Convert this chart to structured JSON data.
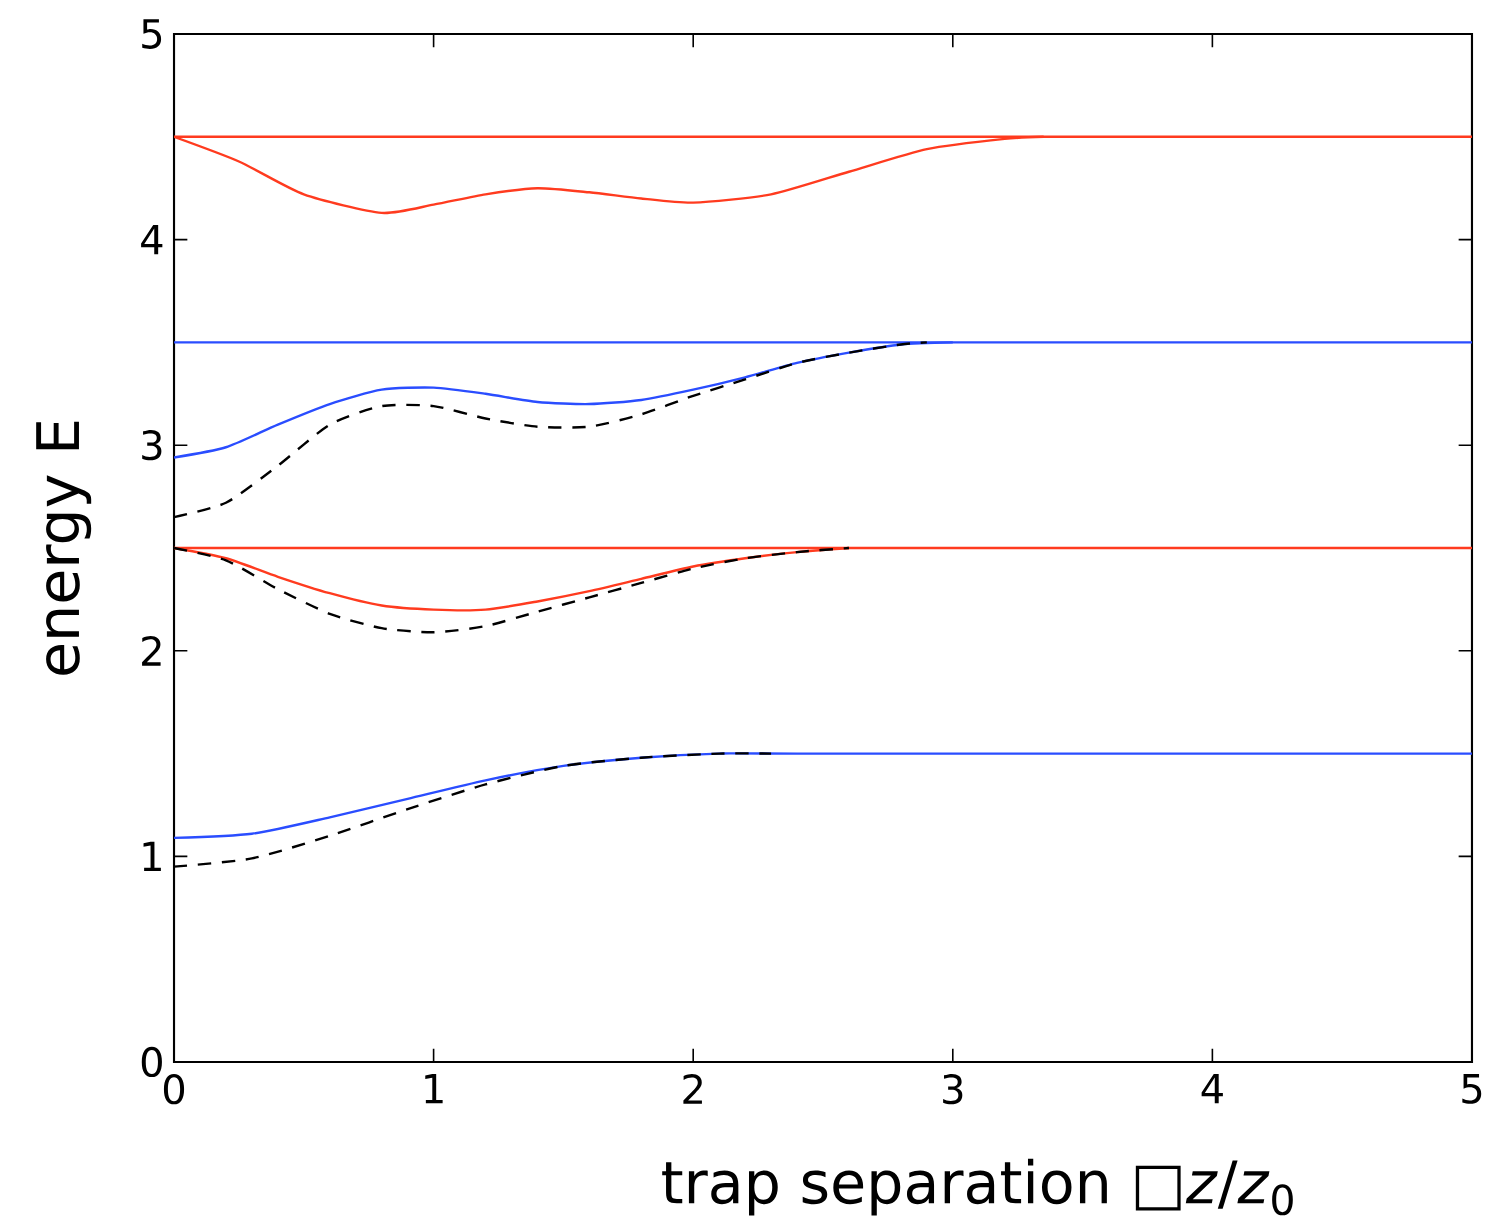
{
  "chart_data": {
    "type": "line",
    "xlabel": "trap separation □*z*/*z*$_{0}$",
    "ylabel": "energy E",
    "xlim": [
      0,
      5
    ],
    "ylim": [
      0,
      5
    ],
    "xticks": [
      0,
      1,
      2,
      3,
      4,
      5
    ],
    "yticks": [
      0,
      1,
      2,
      3,
      4,
      5
    ],
    "marker": "none",
    "series": [
      {
        "color": "#ff3b1f",
        "line_style": "solid",
        "x": [
          0,
          5
        ],
        "values": [
          4.5,
          4.5
        ]
      },
      {
        "color": "#2a4dff",
        "line_style": "solid",
        "x": [
          0,
          5
        ],
        "values": [
          3.5,
          3.5
        ]
      },
      {
        "color": "#ff3b1f",
        "line_style": "solid",
        "x": [
          0,
          5
        ],
        "values": [
          2.5,
          2.5
        ]
      },
      {
        "color": "#ff3b1f",
        "line_style": "solid",
        "x": [
          0,
          0.25,
          0.5,
          0.8,
          1.0,
          1.2,
          1.4,
          1.6,
          1.8,
          2.0,
          2.3,
          2.6,
          2.9,
          3.2,
          3.35
        ],
        "values": [
          4.5,
          4.38,
          4.22,
          4.13,
          4.17,
          4.22,
          4.25,
          4.23,
          4.2,
          4.18,
          4.22,
          4.33,
          4.44,
          4.49,
          4.5
        ]
      },
      {
        "color": "#2a4dff",
        "line_style": "solid",
        "x": [
          0,
          0.2,
          0.4,
          0.6,
          0.8,
          1.0,
          1.2,
          1.4,
          1.6,
          1.8,
          2.0,
          2.2,
          2.4,
          2.6,
          2.8,
          3.0
        ],
        "values": [
          2.94,
          2.99,
          3.1,
          3.2,
          3.27,
          3.28,
          3.25,
          3.21,
          3.2,
          3.22,
          3.27,
          3.33,
          3.4,
          3.45,
          3.49,
          3.5
        ]
      },
      {
        "color": "#000000",
        "line_style": "dashed",
        "x": [
          0,
          0.2,
          0.4,
          0.6,
          0.8,
          1.0,
          1.2,
          1.4,
          1.6,
          1.8,
          2.0,
          2.2,
          2.4,
          2.6,
          2.8,
          2.9
        ],
        "values": [
          2.65,
          2.72,
          2.9,
          3.1,
          3.19,
          3.19,
          3.13,
          3.09,
          3.09,
          3.15,
          3.24,
          3.32,
          3.4,
          3.45,
          3.49,
          3.5
        ]
      },
      {
        "color": "#ff3b1f",
        "line_style": "solid",
        "x": [
          0,
          0.2,
          0.4,
          0.6,
          0.8,
          1.0,
          1.2,
          1.4,
          1.6,
          1.8,
          2.0,
          2.2,
          2.4,
          2.6
        ],
        "values": [
          2.5,
          2.45,
          2.36,
          2.28,
          2.22,
          2.2,
          2.2,
          2.24,
          2.29,
          2.35,
          2.41,
          2.45,
          2.48,
          2.5
        ]
      },
      {
        "color": "#000000",
        "line_style": "dashed",
        "x": [
          0,
          0.2,
          0.4,
          0.6,
          0.8,
          1.0,
          1.2,
          1.4,
          1.6,
          1.8,
          2.0,
          2.2,
          2.4,
          2.6
        ],
        "values": [
          2.5,
          2.44,
          2.3,
          2.18,
          2.11,
          2.09,
          2.12,
          2.19,
          2.26,
          2.33,
          2.4,
          2.45,
          2.48,
          2.5
        ]
      },
      {
        "color": "#2a4dff",
        "line_style": "solid",
        "x": [
          0,
          0.3,
          0.6,
          0.9,
          1.2,
          1.5,
          1.8,
          2.1,
          2.4,
          5
        ],
        "values": [
          1.09,
          1.11,
          1.19,
          1.28,
          1.37,
          1.44,
          1.48,
          1.5,
          1.5,
          1.5
        ]
      },
      {
        "color": "#000000",
        "line_style": "dashed",
        "x": [
          0,
          0.3,
          0.6,
          0.9,
          1.2,
          1.5,
          1.8,
          2.1,
          2.3
        ],
        "values": [
          0.95,
          0.99,
          1.1,
          1.23,
          1.35,
          1.44,
          1.48,
          1.5,
          1.5
        ]
      }
    ]
  }
}
